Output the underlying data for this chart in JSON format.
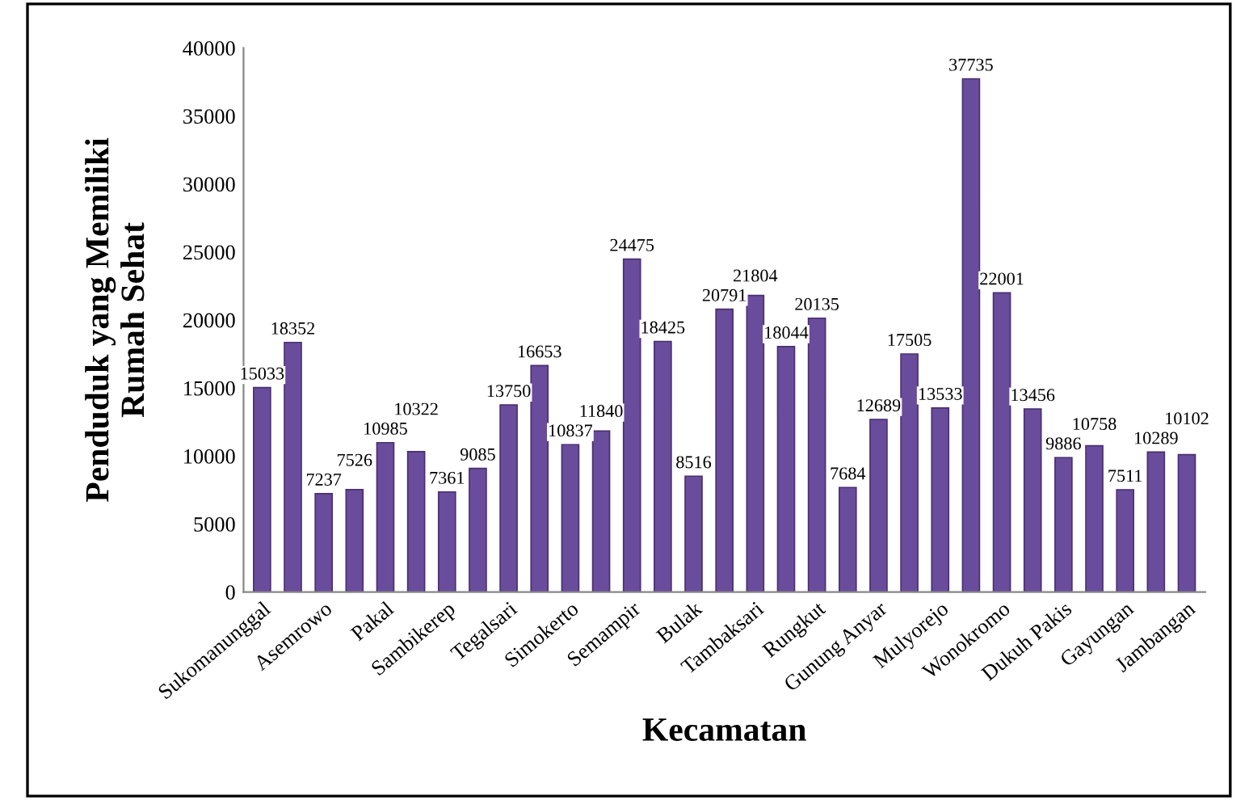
{
  "chart_data": {
    "type": "bar",
    "xlabel": "Kecamatan",
    "ylabel": "Penduduk yang Memiliki\nRumah Sehat",
    "categories": [
      "Sukomanunggal",
      null,
      "Asemrowo",
      null,
      "Pakal",
      null,
      "Sambikerep",
      null,
      "Tegalsari",
      null,
      "Simokerto",
      null,
      "Semampir",
      null,
      "Bulak",
      null,
      "Tambaksari",
      null,
      "Rungkut",
      null,
      "Gunung Anyar",
      null,
      "Mulyorejo",
      null,
      "Wonokromo",
      null,
      "Dukuh Pakis",
      null,
      "Gayungan",
      null,
      "Jambangan"
    ],
    "values": [
      15033,
      18352,
      7237,
      7526,
      10985,
      10322,
      7361,
      9085,
      13750,
      16653,
      10837,
      11840,
      24475,
      18425,
      8516,
      20791,
      21804,
      18044,
      20135,
      7684,
      12689,
      17505,
      13533,
      37735,
      22001,
      13456,
      9886,
      10758,
      7511,
      10289,
      10102
    ],
    "color": "#6a4c9c",
    "ylim": [
      0,
      40000
    ],
    "yticks": [
      0,
      5000,
      10000,
      15000,
      20000,
      25000,
      30000,
      35000,
      40000
    ],
    "grid": false,
    "data_labels": true,
    "legend": false
  }
}
